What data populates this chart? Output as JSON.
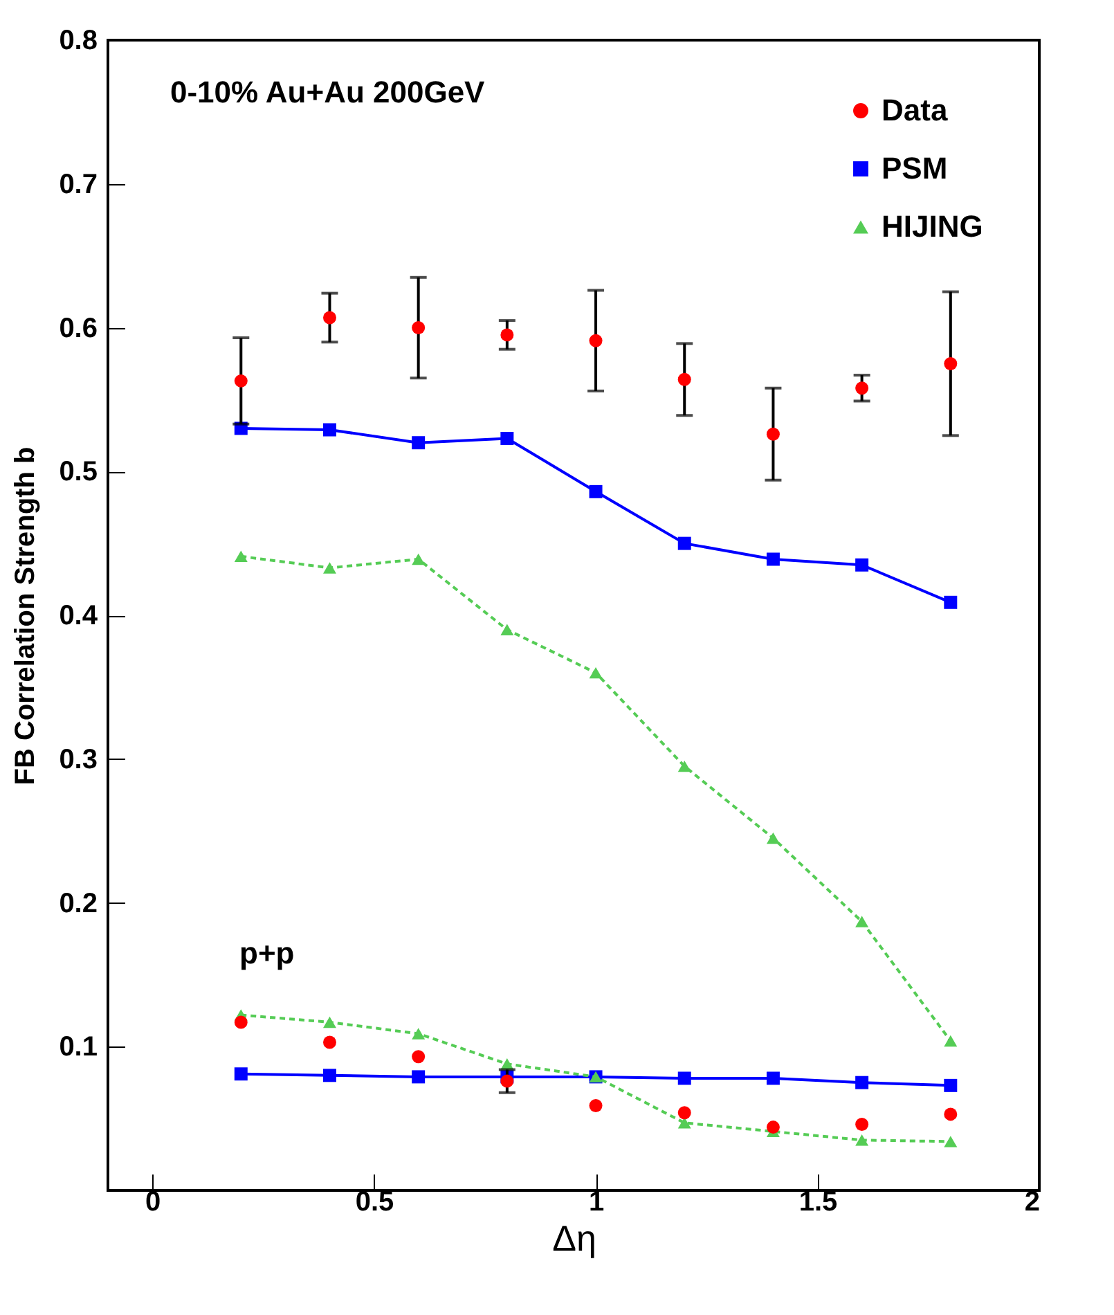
{
  "chart_data": {
    "type": "scatter",
    "xlabel": "Δη",
    "ylabel": "FB Correlation Strength b",
    "annotations": [
      "0-10% Au+Au 200GeV",
      "p+p"
    ],
    "x": [
      0.2,
      0.4,
      0.6,
      0.8,
      1.0,
      1.2,
      1.4,
      1.6,
      1.8
    ],
    "xlim": [
      -0.1,
      2
    ],
    "xticks": [
      0,
      0.5,
      1,
      1.5,
      2
    ],
    "ylim": [
      0,
      0.8
    ],
    "yticks": [
      0.1,
      0.2,
      0.3,
      0.4,
      0.5,
      0.6,
      0.7,
      0.8
    ],
    "legend": "top right",
    "grid": false,
    "series": [
      {
        "name": "PSM",
        "color": "#0000ff",
        "type": "line",
        "marker": "square",
        "line_style": "solid",
        "values": [
          0.53,
          0.529,
          0.52,
          0.523,
          0.486,
          0.45,
          0.439,
          0.435,
          0.409
        ]
      },
      {
        "color": "#0000ff",
        "type": "line",
        "marker": "square",
        "line_style": "solid",
        "values": [
          0.081,
          0.08,
          0.079,
          0.079,
          0.079,
          0.078,
          0.078,
          0.075,
          0.073
        ]
      },
      {
        "name": "HIJING",
        "color": "#55cc55",
        "type": "line",
        "marker": "triangle",
        "line_style": "dashed",
        "values": [
          0.441,
          0.433,
          0.439,
          0.39,
          0.36,
          0.295,
          0.245,
          0.187,
          0.104
        ]
      },
      {
        "color": "#55cc55",
        "type": "line",
        "marker": "triangle",
        "line_style": "dashed",
        "values": [
          0.122,
          0.117,
          0.109,
          0.088,
          0.079,
          0.047,
          0.041,
          0.035,
          0.034
        ]
      },
      {
        "name": "Data",
        "color": "#ff0000",
        "marker": "circle",
        "values": [
          0.563,
          0.607,
          0.6,
          0.595,
          0.591,
          0.564,
          0.526,
          0.558,
          0.575
        ],
        "errors": [
          0.03,
          0.017,
          0.035,
          0.01,
          0.035,
          0.025,
          0.032,
          0.009,
          0.05
        ]
      },
      {
        "color": "#ff0000",
        "marker": "circle",
        "values": [
          0.117,
          0.103,
          0.093,
          0.076,
          0.059,
          0.054,
          0.044,
          0.046,
          0.053
        ],
        "errors": [
          null,
          null,
          null,
          0.008,
          null,
          null,
          null,
          null,
          null
        ]
      }
    ]
  }
}
